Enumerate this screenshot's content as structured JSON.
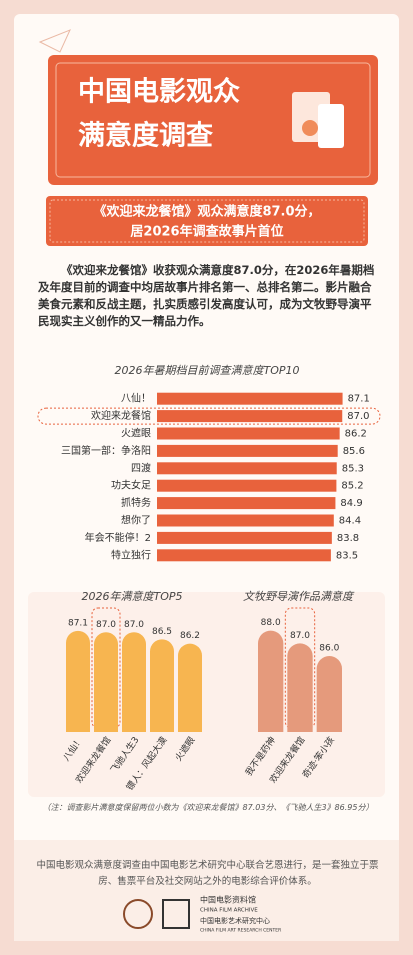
{
  "header": {
    "title_lines": [
      "中国电影观众",
      "满意度调查"
    ]
  },
  "subtitle_lines": [
    "《欢迎来龙餐馆》观众满意度87.0分，",
    "居2026年调查故事片首位"
  ],
  "paragraph": "《欢迎来龙餐馆》收获观众满意度87.0分，在2026年暑期档及年度目前的调查中均居故事片排名第一、总排名第二。影片融合美食元素和反战主题，扎实质感引发高度认可，成为文牧野导演平民现实主义创作的又一精品力作。",
  "chart_data": [
    {
      "type": "bar",
      "horizontal": true,
      "title": "2026年暑期档目前调查满意度TOP10",
      "categories": [
        "八仙！",
        "欢迎来龙餐馆",
        "火遮眼",
        "三国第一部：争洛阳",
        "四渡",
        "功夫女足",
        "抓特务",
        "想你了",
        "年会不能停！2",
        "特立独行"
      ],
      "values": [
        87.1,
        87.0,
        86.2,
        85.6,
        85.3,
        85.2,
        84.9,
        84.4,
        83.8,
        83.5
      ],
      "value_labels": [
        "87.1",
        "87.0",
        "86.2",
        "85.6",
        "85.3",
        "85.2",
        "84.9",
        "84.4",
        "83.8",
        "83.5"
      ],
      "color": "#e8623c",
      "xlim": [
        30,
        90
      ],
      "highlight": 1
    },
    {
      "type": "bar",
      "horizontal": false,
      "title": "2026年满意度TOP5",
      "categories": [
        "八仙！",
        "欢迎来龙餐馆",
        "飞驰人生3",
        "镖人：风起大漠",
        "火遮眼"
      ],
      "values": [
        87.1,
        87.0,
        87.0,
        86.5,
        86.2
      ],
      "value_labels": [
        "87.1",
        "87.0",
        "87.0",
        "86.5",
        "86.2"
      ],
      "color": "#f7b550",
      "ylim": [
        80,
        88
      ],
      "highlight": 1
    },
    {
      "type": "bar",
      "horizontal": false,
      "title": "文牧野导演作品满意度",
      "categories": [
        "我不是药神",
        "欢迎来龙餐馆",
        "奇迹·笨小孩"
      ],
      "values": [
        88.0,
        87.0,
        86.0
      ],
      "value_labels": [
        "88.0",
        "87.0",
        "86.0"
      ],
      "color": "#e59a7c",
      "ylim": [
        80,
        89
      ],
      "highlight": 1
    }
  ],
  "note": "（注：调查影片满意度保留两位小数为《欢迎来龙餐馆》87.03分、《飞驰人生3》86.95分）",
  "footer": {
    "text": "中国电影观众满意度调查由中国电影艺术研究中心联合艺恩进行，是一套独立于票房、售票平台及社交网站之外的电影综合评价体系。",
    "logo1_cn": "中国电影资料馆",
    "logo1_en": "CHINA FILM ARCHIVE",
    "logo2_cn": "中国电影艺术研究中心",
    "logo2_en": "CHINA FILM ART RESEARCH CENTER"
  }
}
